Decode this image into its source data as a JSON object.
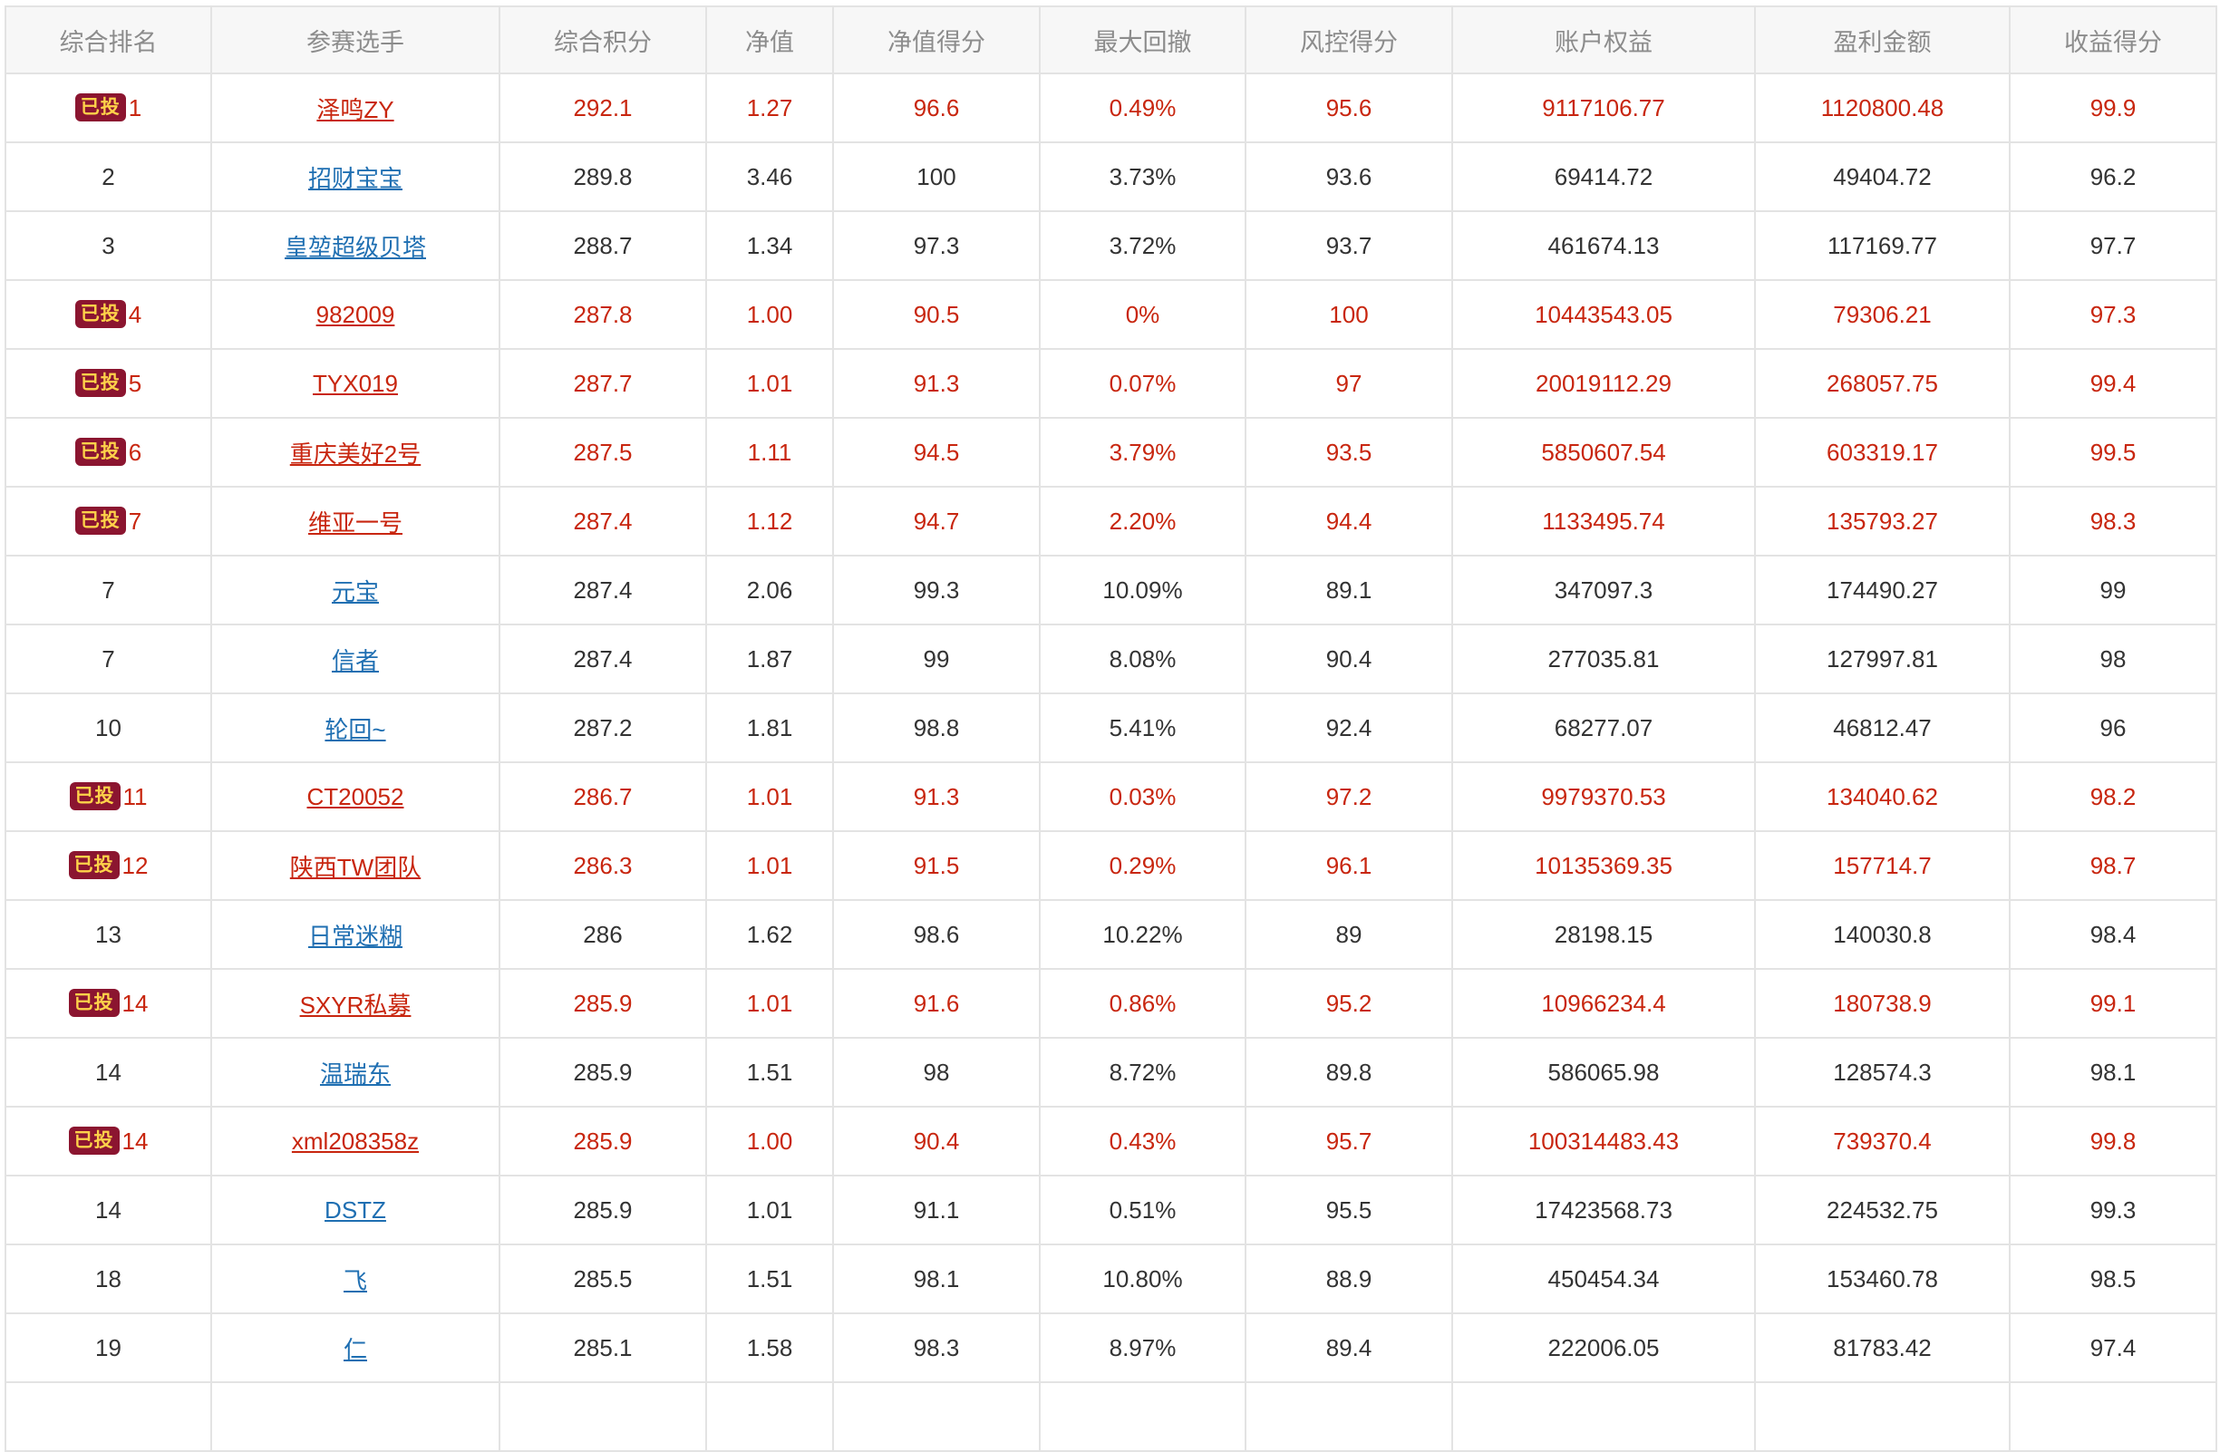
{
  "columns": [
    "综合排名",
    "参赛选手",
    "综合积分",
    "净值",
    "净值得分",
    "最大回撤",
    "风控得分",
    "账户权益",
    "盈利金额",
    "收益得分"
  ],
  "colors": {
    "invested_text": "#c8260f",
    "normal_text": "#333333",
    "link": "#1f6fb2",
    "badge_bg": "#8b1530",
    "badge_text": "#ffd24a",
    "header_text": "#8c8c8c",
    "header_bg": "#f7f7f7"
  },
  "rows": [
    {
      "badge": "已投",
      "invested": true,
      "rank": "1",
      "name": "泽鸣ZY",
      "score": "292.1",
      "nav": "1.27",
      "nav_score": "96.6",
      "max_dd": "0.49%",
      "risk_score": "95.6",
      "equity": "9117106.77",
      "profit": "1120800.48",
      "return_score": "99.9"
    },
    {
      "badge": "",
      "invested": false,
      "rank": "2",
      "name": "招财宝宝",
      "score": "289.8",
      "nav": "3.46",
      "nav_score": "100",
      "max_dd": "3.73%",
      "risk_score": "93.6",
      "equity": "69414.72",
      "profit": "49404.72",
      "return_score": "96.2"
    },
    {
      "badge": "",
      "invested": false,
      "rank": "3",
      "name": "皇堃超级贝塔",
      "score": "288.7",
      "nav": "1.34",
      "nav_score": "97.3",
      "max_dd": "3.72%",
      "risk_score": "93.7",
      "equity": "461674.13",
      "profit": "117169.77",
      "return_score": "97.7"
    },
    {
      "badge": "已投",
      "invested": true,
      "rank": "4",
      "name": "982009",
      "score": "287.8",
      "nav": "1.00",
      "nav_score": "90.5",
      "max_dd": "0%",
      "risk_score": "100",
      "equity": "10443543.05",
      "profit": "79306.21",
      "return_score": "97.3"
    },
    {
      "badge": "已投",
      "invested": true,
      "rank": "5",
      "name": "TYX019",
      "score": "287.7",
      "nav": "1.01",
      "nav_score": "91.3",
      "max_dd": "0.07%",
      "risk_score": "97",
      "equity": "20019112.29",
      "profit": "268057.75",
      "return_score": "99.4"
    },
    {
      "badge": "已投",
      "invested": true,
      "rank": "6",
      "name": "重庆美好2号",
      "score": "287.5",
      "nav": "1.11",
      "nav_score": "94.5",
      "max_dd": "3.79%",
      "risk_score": "93.5",
      "equity": "5850607.54",
      "profit": "603319.17",
      "return_score": "99.5"
    },
    {
      "badge": "已投",
      "invested": true,
      "rank": "7",
      "name": "维亚一号",
      "score": "287.4",
      "nav": "1.12",
      "nav_score": "94.7",
      "max_dd": "2.20%",
      "risk_score": "94.4",
      "equity": "1133495.74",
      "profit": "135793.27",
      "return_score": "98.3"
    },
    {
      "badge": "",
      "invested": false,
      "rank": "7",
      "name": "元宝",
      "score": "287.4",
      "nav": "2.06",
      "nav_score": "99.3",
      "max_dd": "10.09%",
      "risk_score": "89.1",
      "equity": "347097.3",
      "profit": "174490.27",
      "return_score": "99"
    },
    {
      "badge": "",
      "invested": false,
      "rank": "7",
      "name": "信者",
      "score": "287.4",
      "nav": "1.87",
      "nav_score": "99",
      "max_dd": "8.08%",
      "risk_score": "90.4",
      "equity": "277035.81",
      "profit": "127997.81",
      "return_score": "98"
    },
    {
      "badge": "",
      "invested": false,
      "rank": "10",
      "name": "轮回~",
      "score": "287.2",
      "nav": "1.81",
      "nav_score": "98.8",
      "max_dd": "5.41%",
      "risk_score": "92.4",
      "equity": "68277.07",
      "profit": "46812.47",
      "return_score": "96"
    },
    {
      "badge": "已投",
      "invested": true,
      "rank": "11",
      "name": "CT20052",
      "score": "286.7",
      "nav": "1.01",
      "nav_score": "91.3",
      "max_dd": "0.03%",
      "risk_score": "97.2",
      "equity": "9979370.53",
      "profit": "134040.62",
      "return_score": "98.2"
    },
    {
      "badge": "已投",
      "invested": true,
      "rank": "12",
      "name": "陕西TW团队",
      "score": "286.3",
      "nav": "1.01",
      "nav_score": "91.5",
      "max_dd": "0.29%",
      "risk_score": "96.1",
      "equity": "10135369.35",
      "profit": "157714.7",
      "return_score": "98.7"
    },
    {
      "badge": "",
      "invested": false,
      "rank": "13",
      "name": "日常迷糊",
      "score": "286",
      "nav": "1.62",
      "nav_score": "98.6",
      "max_dd": "10.22%",
      "risk_score": "89",
      "equity": "28198.15",
      "profit": "140030.8",
      "return_score": "98.4"
    },
    {
      "badge": "已投",
      "invested": true,
      "rank": "14",
      "name": "SXYR私募",
      "score": "285.9",
      "nav": "1.01",
      "nav_score": "91.6",
      "max_dd": "0.86%",
      "risk_score": "95.2",
      "equity": "10966234.4",
      "profit": "180738.9",
      "return_score": "99.1"
    },
    {
      "badge": "",
      "invested": false,
      "rank": "14",
      "name": "温瑞东",
      "score": "285.9",
      "nav": "1.51",
      "nav_score": "98",
      "max_dd": "8.72%",
      "risk_score": "89.8",
      "equity": "586065.98",
      "profit": "128574.3",
      "return_score": "98.1"
    },
    {
      "badge": "已投",
      "invested": true,
      "rank": "14",
      "name": "xml208358z",
      "score": "285.9",
      "nav": "1.00",
      "nav_score": "90.4",
      "max_dd": "0.43%",
      "risk_score": "95.7",
      "equity": "100314483.43",
      "profit": "739370.4",
      "return_score": "99.8"
    },
    {
      "badge": "",
      "invested": false,
      "rank": "14",
      "name": "DSTZ",
      "score": "285.9",
      "nav": "1.01",
      "nav_score": "91.1",
      "max_dd": "0.51%",
      "risk_score": "95.5",
      "equity": "17423568.73",
      "profit": "224532.75",
      "return_score": "99.3"
    },
    {
      "badge": "",
      "invested": false,
      "rank": "18",
      "name": "飞",
      "score": "285.5",
      "nav": "1.51",
      "nav_score": "98.1",
      "max_dd": "10.80%",
      "risk_score": "88.9",
      "equity": "450454.34",
      "profit": "153460.78",
      "return_score": "98.5"
    },
    {
      "badge": "",
      "invested": false,
      "rank": "19",
      "name": "仁",
      "score": "285.1",
      "nav": "1.58",
      "nav_score": "98.3",
      "max_dd": "8.97%",
      "risk_score": "89.4",
      "equity": "222006.05",
      "profit": "81783.42",
      "return_score": "97.4"
    },
    {
      "badge": "",
      "invested": false,
      "rank": "",
      "name": "",
      "score": "",
      "nav": "",
      "nav_score": "",
      "max_dd": "",
      "risk_score": "",
      "equity": "",
      "profit": "",
      "return_score": ""
    }
  ]
}
